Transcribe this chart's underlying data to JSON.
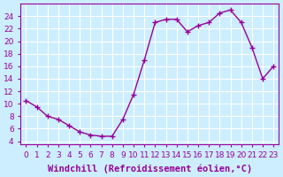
{
  "x": [
    0,
    1,
    2,
    3,
    4,
    5,
    6,
    7,
    8,
    9,
    10,
    11,
    12,
    13,
    14,
    15,
    16,
    17,
    18,
    19,
    20,
    21,
    22,
    23
  ],
  "y": [
    10.5,
    9.5,
    8.0,
    7.5,
    6.5,
    5.5,
    5.0,
    4.8,
    4.8,
    7.5,
    11.5,
    17.0,
    23.0,
    23.5,
    23.5,
    21.5,
    22.5,
    23.0,
    24.5,
    25.0,
    23.0,
    19.0,
    14.0,
    16.0
  ],
  "line_color": "#990099",
  "marker": "+",
  "marker_size": 4,
  "bg_color": "#cceeff",
  "grid_color": "#ffffff",
  "xlabel": "Windchill (Refroidissement éolien,°C)",
  "xlabel_fontsize": 7.5,
  "ylabel_ticks": [
    4,
    6,
    8,
    10,
    12,
    14,
    16,
    18,
    20,
    22,
    24
  ],
  "xticks": [
    0,
    1,
    2,
    3,
    4,
    5,
    6,
    7,
    8,
    9,
    10,
    11,
    12,
    13,
    14,
    15,
    16,
    17,
    18,
    19,
    20,
    21,
    22,
    23
  ],
  "ylim": [
    3.5,
    26
  ],
  "xlim": [
    -0.5,
    23.5
  ],
  "tick_fontsize": 6.5
}
